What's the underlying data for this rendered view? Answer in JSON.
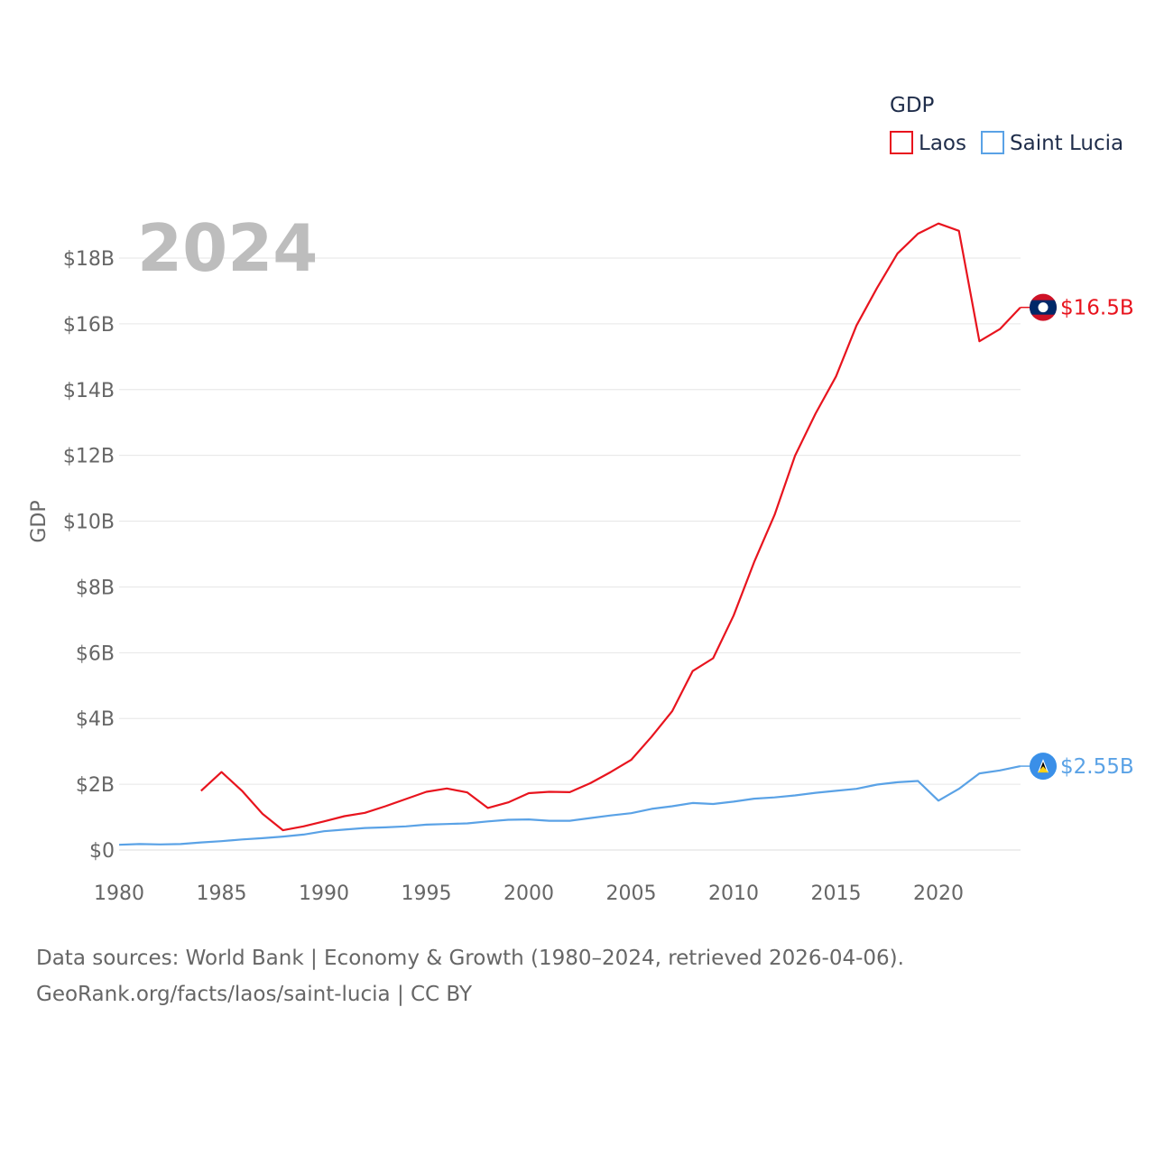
{
  "chart_data": {
    "type": "line",
    "legend_title": "GDP",
    "legend_position": "top-right",
    "ylabel": "GDP",
    "xlabel": "",
    "year_label": "2024",
    "x_ticks": [
      "1980",
      "1985",
      "1990",
      "1995",
      "2000",
      "2005",
      "2010",
      "2015",
      "2020"
    ],
    "y_ticks": [
      "$0",
      "$2B",
      "$4B",
      "$6B",
      "$8B",
      "$10B",
      "$12B",
      "$14B",
      "$16B",
      "$18B"
    ],
    "xlim": [
      1980,
      2024
    ],
    "ylim": [
      0,
      19
    ],
    "grid": true,
    "value_units": "billion USD",
    "series": [
      {
        "name": "Laos",
        "color": "#e8141e",
        "end_label": "$16.5B",
        "flag_icon": "laos-flag-icon",
        "start_year": 1984,
        "values": [
          1.8,
          2.37,
          1.8,
          1.1,
          0.6,
          0.72,
          0.87,
          1.03,
          1.13,
          1.33,
          1.55,
          1.77,
          1.87,
          1.75,
          1.28,
          1.45,
          1.73,
          1.77,
          1.76,
          2.03,
          2.37,
          2.74,
          3.45,
          4.22,
          5.44,
          5.83,
          7.13,
          8.75,
          10.19,
          11.99,
          13.27,
          14.4,
          15.95,
          17.09,
          18.14,
          18.74,
          19.05,
          18.83,
          15.47,
          15.84,
          16.5
        ]
      },
      {
        "name": "Saint Lucia",
        "color": "#5aa2e6",
        "end_label": "$2.55B",
        "flag_icon": "saint-lucia-flag-icon",
        "start_year": 1980,
        "values": [
          0.16,
          0.18,
          0.17,
          0.18,
          0.23,
          0.27,
          0.32,
          0.36,
          0.41,
          0.47,
          0.57,
          0.62,
          0.67,
          0.69,
          0.72,
          0.77,
          0.79,
          0.81,
          0.87,
          0.92,
          0.93,
          0.89,
          0.89,
          0.97,
          1.05,
          1.12,
          1.25,
          1.33,
          1.43,
          1.4,
          1.47,
          1.56,
          1.6,
          1.66,
          1.74,
          1.8,
          1.86,
          1.99,
          2.06,
          2.1,
          1.5,
          1.86,
          2.33,
          2.42,
          2.55
        ]
      }
    ]
  },
  "footer": {
    "line1": "Data sources: World Bank | Economy & Growth (1980–2024, retrieved 2026-04-06).",
    "line2": "GeoRank.org/facts/laos/saint-lucia | CC BY"
  }
}
